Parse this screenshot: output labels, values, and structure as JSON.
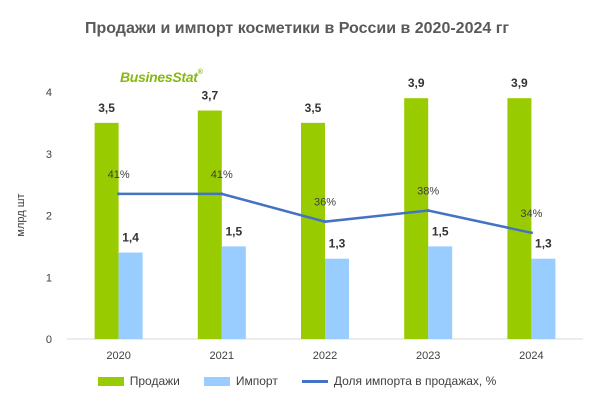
{
  "colors": {
    "sales": "#99cc00",
    "import": "#99ccff",
    "share_line": "#4472c4",
    "logo": "#86b817"
  },
  "logo": {
    "text": "BusinesStat",
    "mark": "®"
  },
  "chart_data": {
    "type": "bar",
    "title": "Продажи и импорт косметики в России в 2020-2024 гг",
    "ylabel": "млрд шт",
    "xlabel": "",
    "ylim": [
      0,
      4
    ],
    "yticks": [
      "0",
      "1",
      "2",
      "3",
      "4"
    ],
    "categories": [
      "2020",
      "2021",
      "2022",
      "2023",
      "2024"
    ],
    "series": [
      {
        "name": "Продажи",
        "type": "bar",
        "values": [
          3.5,
          3.7,
          3.5,
          3.9,
          3.9
        ],
        "labels": [
          "3,5",
          "3,7",
          "3,5",
          "3,9",
          "3,9"
        ]
      },
      {
        "name": "Импорт",
        "type": "bar",
        "values": [
          1.4,
          1.5,
          1.3,
          1.5,
          1.3
        ],
        "labels": [
          "1,4",
          "1,5",
          "1,3",
          "1,5",
          "1,3"
        ]
      },
      {
        "name": "Доля импорта в продажах, %",
        "type": "line",
        "values": [
          41,
          41,
          36,
          38,
          34
        ],
        "labels": [
          "41%",
          "41%",
          "36%",
          "38%",
          "34%"
        ]
      }
    ],
    "grid": false,
    "legend": "bottom"
  }
}
